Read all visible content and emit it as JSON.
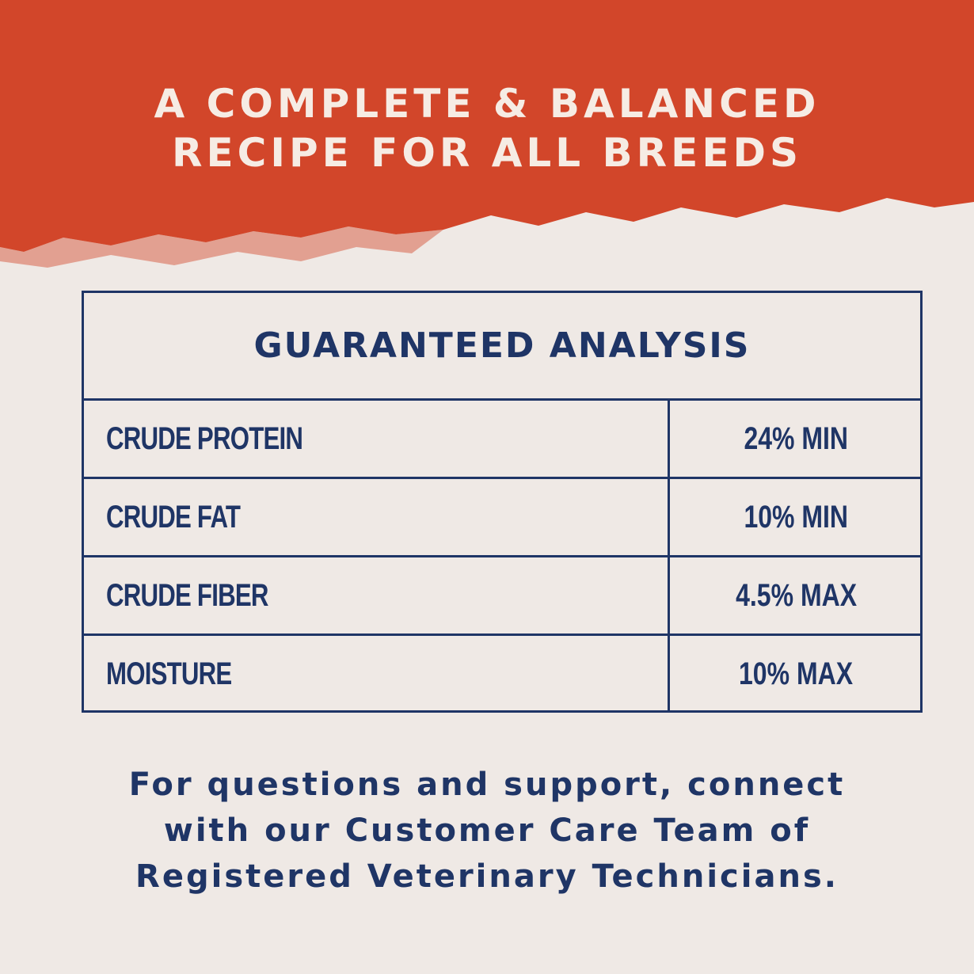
{
  "colors": {
    "banner": "#d2462a",
    "background": "#efe9e5",
    "navy": "#1f3566",
    "title_text": "#f6ece4"
  },
  "header": {
    "lines": [
      "A COMPLETE & BALANCED",
      "RECIPE FOR ALL BREEDS"
    ]
  },
  "table": {
    "title": "GUARANTEED ANALYSIS",
    "rows": [
      {
        "label": "CRUDE PROTEIN",
        "value": "24% MIN"
      },
      {
        "label": "CRUDE FAT",
        "value": "10% MIN"
      },
      {
        "label": "CRUDE FIBER",
        "value": "4.5% MAX"
      },
      {
        "label": "MOISTURE",
        "value": "10% MAX"
      }
    ]
  },
  "footer": {
    "lines": [
      "For questions and support, connect",
      "with our Customer Care Team of",
      "Registered Veterinary Technicians."
    ]
  }
}
